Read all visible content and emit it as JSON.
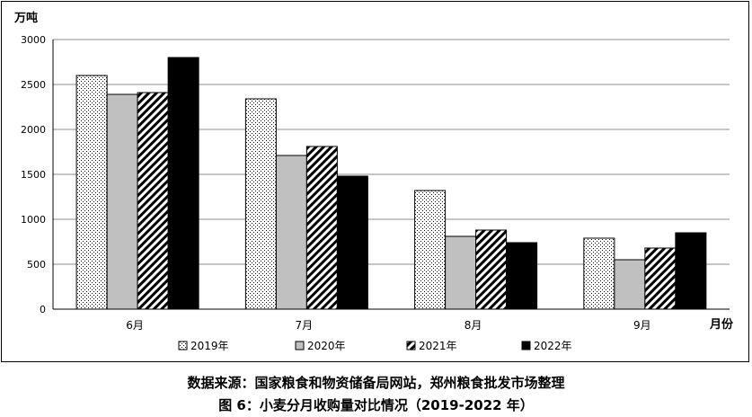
{
  "caption": {
    "source": "数据来源：国家粮食和物资储备局网站，郑州粮食批发市场整理",
    "title": "图 6：小麦分月收购量对比情况（2019-2022 年）"
  },
  "chart_data": {
    "type": "bar",
    "ylabel": "万吨",
    "xlabel": "月份",
    "ylim": [
      0,
      3000
    ],
    "yticks": [
      0,
      500,
      1000,
      1500,
      2000,
      2500,
      3000
    ],
    "grid": true,
    "legend_position": "bottom",
    "categories": [
      "6月",
      "7月",
      "8月",
      "9月"
    ],
    "series": [
      {
        "name": "2019年",
        "values": [
          2600,
          2340,
          1320,
          790
        ],
        "pattern": "dots",
        "color": "#ffffff"
      },
      {
        "name": "2020年",
        "values": [
          2390,
          1710,
          810,
          550
        ],
        "pattern": "solid",
        "color": "#c0c0c0"
      },
      {
        "name": "2021年",
        "values": [
          2410,
          1810,
          880,
          680
        ],
        "pattern": "diagonal",
        "color": "#ffffff"
      },
      {
        "name": "2022年",
        "values": [
          2800,
          1480,
          740,
          850
        ],
        "pattern": "solid",
        "color": "#000000"
      }
    ]
  }
}
